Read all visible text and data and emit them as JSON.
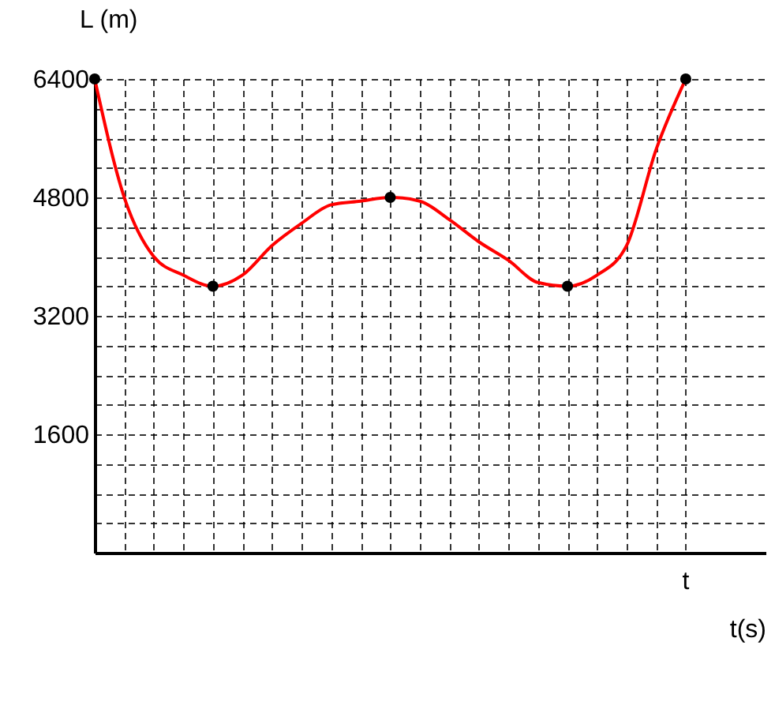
{
  "chart_data": {
    "type": "line",
    "xlabel": "t(s)",
    "ylabel": "L (m)",
    "categories": [
      null,
      null,
      null,
      null,
      null,
      null,
      null,
      null,
      null,
      null,
      null,
      null,
      null,
      null,
      null,
      null,
      null,
      null,
      null,
      null,
      null
    ],
    "ylim": [
      0,
      6400
    ],
    "yticks": [
      {
        "value": 400,
        "label": null
      },
      {
        "value": 800,
        "label": null
      },
      {
        "value": 1200,
        "label": null
      },
      1600,
      {
        "value": 2000,
        "label": null
      },
      {
        "value": 2400,
        "label": null
      },
      {
        "value": 2800,
        "label": null
      },
      3200,
      {
        "value": 3600,
        "label": null
      },
      {
        "value": 4000,
        "label": null
      },
      {
        "value": 4400,
        "label": null
      },
      4800,
      {
        "value": 5200,
        "label": null
      },
      {
        "value": 5600,
        "label": null
      },
      {
        "value": 6000,
        "label": null
      },
      6400
    ],
    "grid": true,
    "annotations": [
      "t"
    ],
    "series": [
      {
        "color": "#ff0000",
        "marker": "none",
        "values": [
          6400,
          4800,
          4000,
          3750,
          3600,
          3750,
          4150,
          4450,
          4700,
          4750,
          4800,
          4750,
          4500,
          4200,
          3950,
          3650,
          3600,
          3750,
          4150,
          5450,
          6400
        ]
      },
      {
        "type": "scatter",
        "color": "#000000",
        "marker": "circle",
        "values": [
          6400,
          null,
          null,
          null,
          3600,
          null,
          null,
          null,
          null,
          null,
          4800,
          null,
          null,
          null,
          null,
          null,
          3600,
          null,
          null,
          null,
          6400
        ]
      }
    ]
  }
}
